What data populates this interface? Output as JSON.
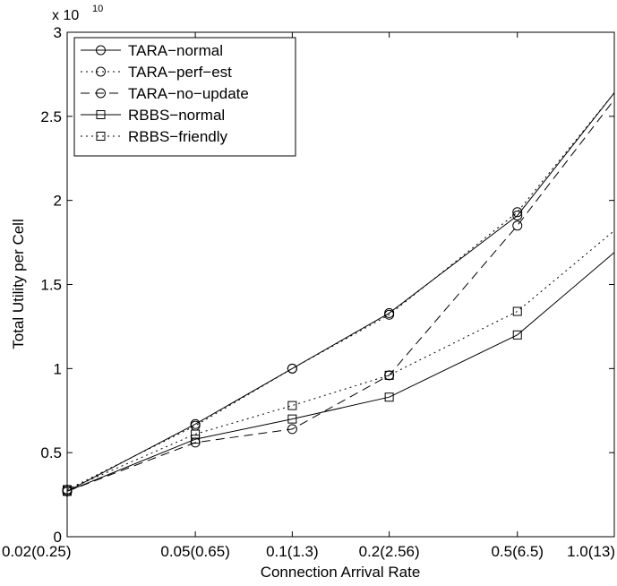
{
  "chart_data": {
    "type": "line",
    "title": "",
    "xlabel": "Connection Arrival Rate",
    "ylabel": "Total Utility per Cell",
    "y_multiplier_label": "x 10",
    "y_multiplier_exponent": "10",
    "x_scale": "log",
    "xlim": [
      0.02,
      1.0
    ],
    "ylim": [
      0,
      3
    ],
    "x": [
      0.02,
      0.05,
      0.1,
      0.2,
      0.5,
      1.0
    ],
    "x_tick_labels": [
      "0.02(0.25)",
      "0.05(0.65)",
      "0.1(1.3)",
      "0.2(2.56)",
      "0.5(6.5)",
      "1.0(13)"
    ],
    "y_ticks": [
      0,
      0.5,
      1,
      1.5,
      2,
      2.5,
      3
    ],
    "y_tick_labels": [
      "0",
      "0.5",
      "1",
      "1.5",
      "2",
      "2.5",
      "3"
    ],
    "grid": false,
    "legend_position": "top-left",
    "series": [
      {
        "name": "TARA−normal",
        "linestyle": "solid",
        "marker": "circle",
        "values": [
          0.27,
          0.67,
          1.0,
          1.33,
          1.91,
          2.64
        ]
      },
      {
        "name": "TARA−perf−est",
        "linestyle": "dotted",
        "marker": "circle",
        "values": [
          0.28,
          0.66,
          1.0,
          1.32,
          1.93,
          2.64
        ]
      },
      {
        "name": "TARA−no−update",
        "linestyle": "dashed",
        "marker": "circle",
        "values": [
          0.27,
          0.56,
          0.64,
          0.96,
          1.85,
          2.6
        ]
      },
      {
        "name": "RBBS−normal",
        "linestyle": "solid",
        "marker": "square",
        "values": [
          0.27,
          0.58,
          0.7,
          0.83,
          1.2,
          1.69
        ]
      },
      {
        "name": "RBBS−friendly",
        "linestyle": "dotted",
        "marker": "square",
        "values": [
          0.28,
          0.61,
          0.78,
          0.96,
          1.34,
          1.82
        ]
      }
    ]
  }
}
